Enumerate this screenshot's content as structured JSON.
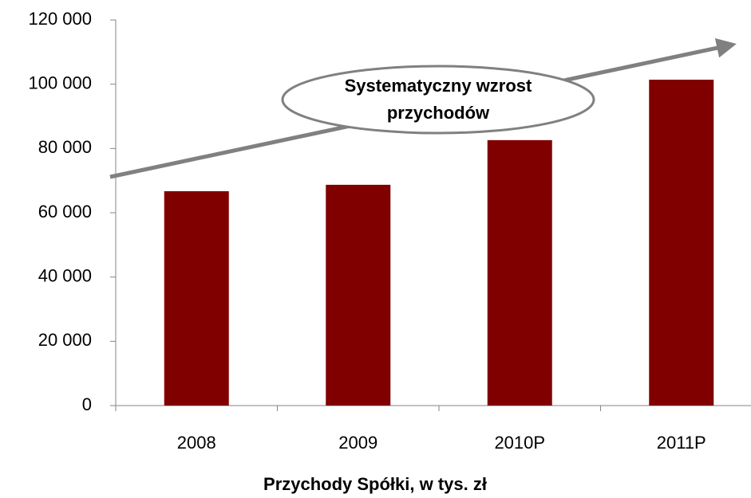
{
  "chart_data": {
    "type": "bar",
    "xlabel": "Przychody Spółki, w tys. zł",
    "annotation": [
      "Systematyczny wzrost",
      "przychodów"
    ],
    "categories": [
      "2008",
      "2009",
      "2010P",
      "2011P"
    ],
    "values": [
      66700,
      68700,
      82600,
      101400
    ],
    "color": "#800000",
    "ylim": [
      0,
      120000
    ],
    "yticks": [
      0,
      {
        "value": 20000,
        "label": "20 000"
      },
      {
        "value": 40000,
        "label": "40 000"
      },
      {
        "value": 60000,
        "label": "60 000"
      },
      {
        "value": 80000,
        "label": "80 000"
      },
      {
        "value": 100000,
        "label": "100 000"
      },
      {
        "value": 120000,
        "label": "120 000"
      }
    ],
    "grid": false
  }
}
